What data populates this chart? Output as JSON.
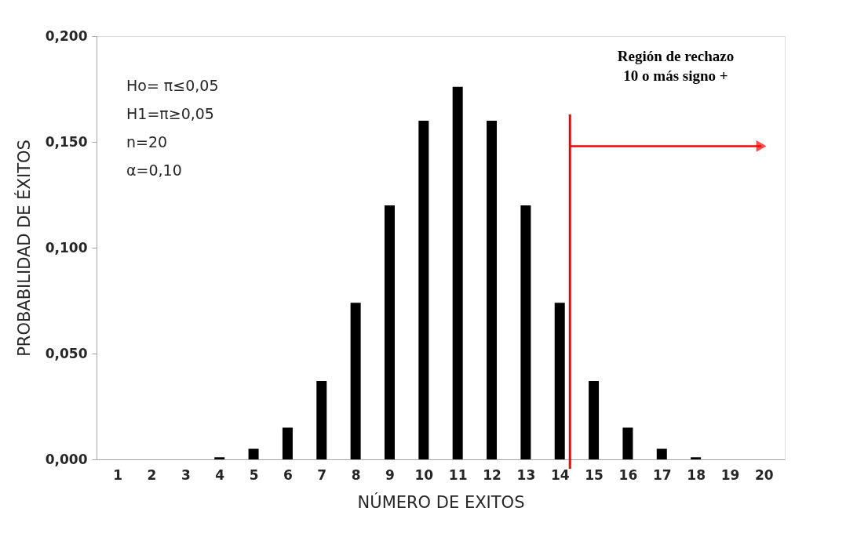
{
  "chart_data": {
    "type": "bar",
    "xlabel": "NÚMERO DE EXITOS",
    "ylabel": "PROBABILIDAD DE ÉXITOS",
    "x": [
      1,
      2,
      3,
      4,
      5,
      6,
      7,
      8,
      9,
      10,
      11,
      12,
      13,
      14,
      15,
      16,
      17,
      18,
      19,
      20
    ],
    "series": [
      {
        "color": "#000000",
        "values": [
          0,
          0,
          0,
          0.001,
          0.005,
          0.015,
          0.037,
          0.074,
          0.12,
          0.16,
          0.176,
          0.16,
          0.12,
          0.074,
          0.037,
          0.015,
          0.005,
          0.001,
          0,
          0
        ]
      }
    ],
    "xlim": [
      0.5,
      20.5
    ],
    "xticks": [
      1,
      2,
      3,
      4,
      5,
      6,
      7,
      8,
      9,
      10,
      11,
      12,
      13,
      14,
      15,
      16,
      17,
      18,
      19,
      20
    ],
    "ylim": [
      0,
      0.2
    ],
    "yticks": [
      {
        "value": 0,
        "label": "0,000"
      },
      {
        "value": 0.05,
        "label": "0,050"
      },
      {
        "value": 0.1,
        "label": "0,100"
      },
      {
        "value": 0.15,
        "label": "0,150"
      },
      {
        "value": 0.2,
        "label": "0,200"
      }
    ],
    "grid": false,
    "ref_lines": [
      {
        "axis": "x",
        "value": 14.3,
        "label": null,
        "color": "#ff0000"
      }
    ],
    "annotations": [
      "Ho= π≤0,05",
      "H1=π≥0,05",
      "n=20",
      "α=0,10",
      "Región de rechazo",
      "10 o más signo +"
    ]
  }
}
